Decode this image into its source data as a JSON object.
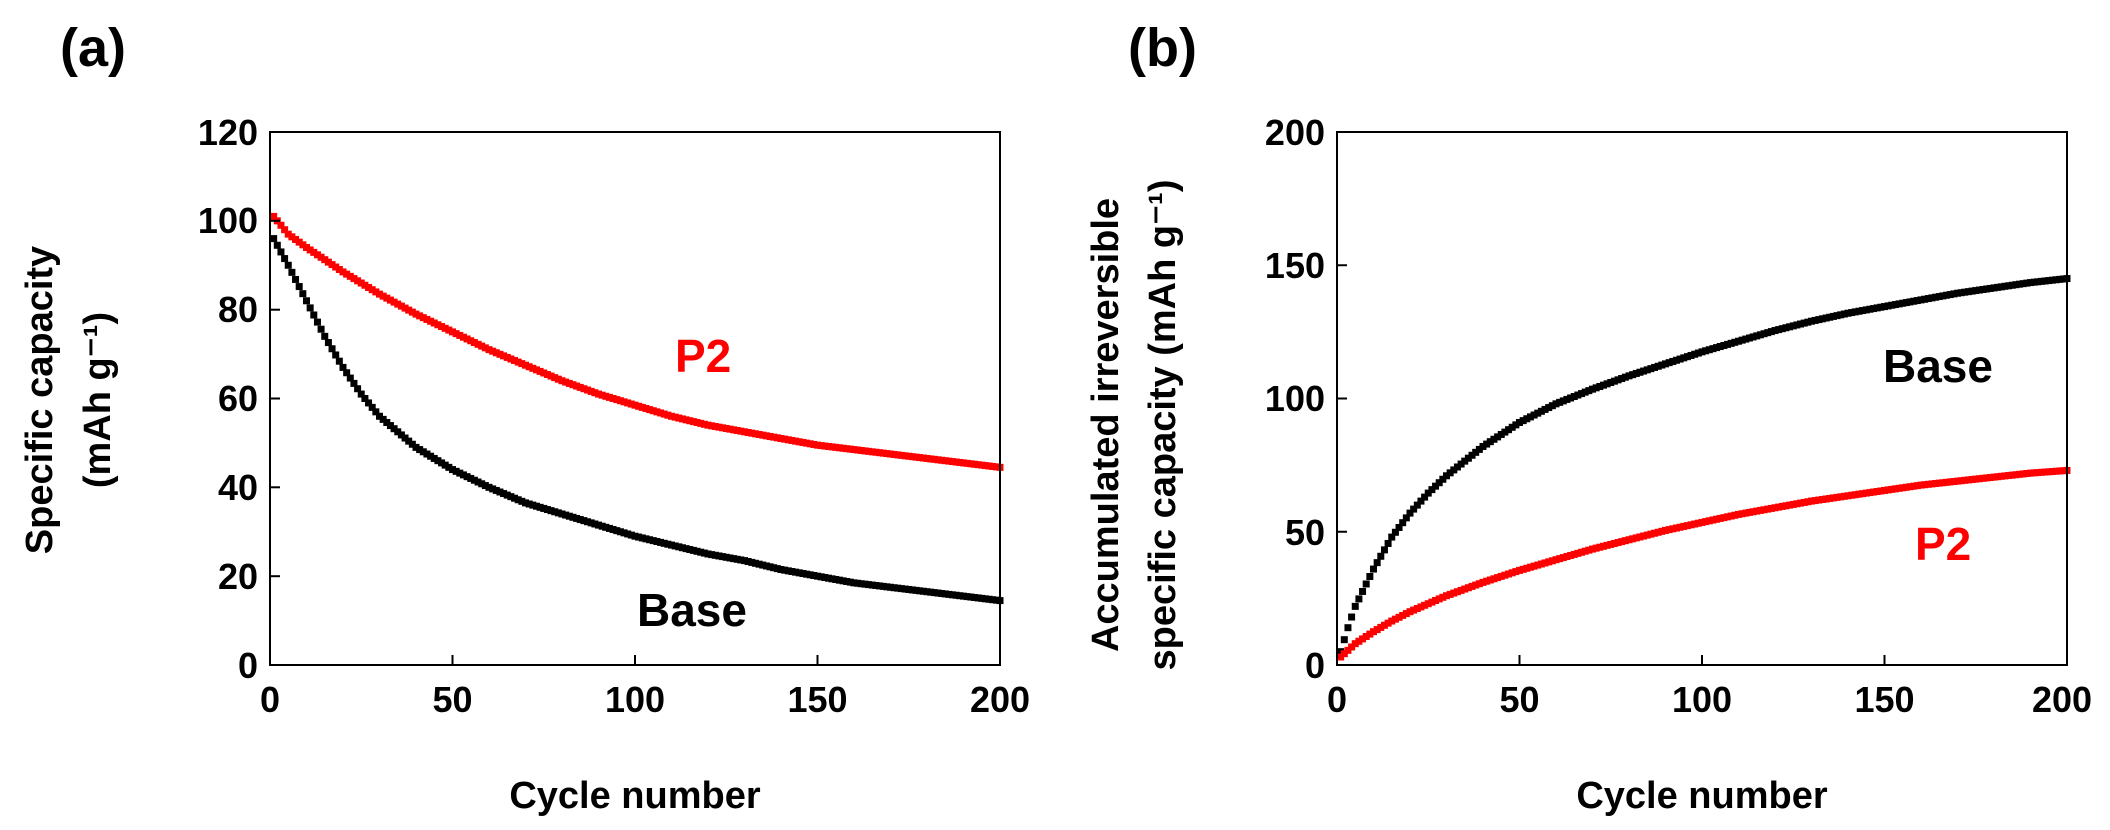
{
  "colors": {
    "Base": "#000000",
    "P2": "#ff0000"
  },
  "chart_data": [
    {
      "type": "scatter",
      "panel_label": "(a)",
      "xlabel": "Cycle number",
      "ylabel_lines": [
        "Specific capacity",
        "(mAh g⁻¹)"
      ],
      "xlim": [
        0,
        200
      ],
      "ylim": [
        0,
        120
      ],
      "xticks": [
        0,
        50,
        100,
        150,
        200
      ],
      "yticks": [
        0,
        20,
        40,
        60,
        80,
        100,
        120
      ],
      "grid": false,
      "series": [
        {
          "name": "P2",
          "label": "P2",
          "x": [
            1,
            5,
            10,
            20,
            30,
            40,
            50,
            60,
            70,
            80,
            90,
            100,
            110,
            120,
            130,
            140,
            150,
            160,
            170,
            180,
            190,
            200
          ],
          "y": [
            101,
            97,
            94,
            88.5,
            83.5,
            79,
            75,
            71,
            67.5,
            64,
            61,
            58.5,
            56,
            54,
            52.5,
            51,
            49.5,
            48.5,
            47.5,
            46.5,
            45.5,
            44.5
          ]
        },
        {
          "name": "Base",
          "label": "Base",
          "x": [
            1,
            5,
            10,
            15,
            20,
            25,
            30,
            40,
            50,
            60,
            70,
            80,
            90,
            100,
            110,
            120,
            130,
            140,
            150,
            160,
            170,
            180,
            190,
            200
          ],
          "y": [
            96,
            90,
            82,
            74,
            67,
            61,
            56,
            49,
            44,
            40,
            36.5,
            34,
            31.5,
            29,
            27,
            25,
            23.5,
            21.5,
            20,
            18.5,
            17.5,
            16.5,
            15.5,
            14.5
          ]
        }
      ]
    },
    {
      "type": "scatter",
      "panel_label": "(b)",
      "xlabel": "Cycle number",
      "ylabel_lines": [
        "Accumulated irreversible",
        "specific capacity (mAh g⁻¹)"
      ],
      "xlim": [
        0,
        200
      ],
      "ylim": [
        0,
        200
      ],
      "xticks": [
        0,
        50,
        100,
        150,
        200
      ],
      "yticks": [
        0,
        50,
        100,
        150,
        200
      ],
      "grid": false,
      "series": [
        {
          "name": "Base",
          "label": "Base",
          "x": [
            1,
            3,
            5,
            10,
            15,
            20,
            25,
            30,
            40,
            50,
            60,
            70,
            80,
            90,
            100,
            110,
            120,
            130,
            140,
            150,
            160,
            170,
            180,
            190,
            200
          ],
          "y": [
            5,
            14,
            22,
            36,
            48,
            57,
            64.5,
            71,
            82,
            91,
            98,
            103.5,
            108.5,
            113,
            117.5,
            121.5,
            125.5,
            129,
            132,
            134.5,
            137,
            139.5,
            141.5,
            143.5,
            145
          ]
        },
        {
          "name": "P2",
          "label": "P2",
          "x": [
            1,
            5,
            10,
            15,
            20,
            30,
            40,
            50,
            60,
            70,
            80,
            90,
            100,
            110,
            120,
            130,
            140,
            150,
            160,
            170,
            180,
            190,
            200
          ],
          "y": [
            3,
            8,
            12.5,
            16.5,
            20,
            26,
            31,
            35.5,
            39.5,
            43.5,
            47,
            50.5,
            53.5,
            56.5,
            59,
            61.5,
            63.5,
            65.5,
            67.5,
            69,
            70.5,
            72,
            73
          ]
        }
      ]
    }
  ]
}
